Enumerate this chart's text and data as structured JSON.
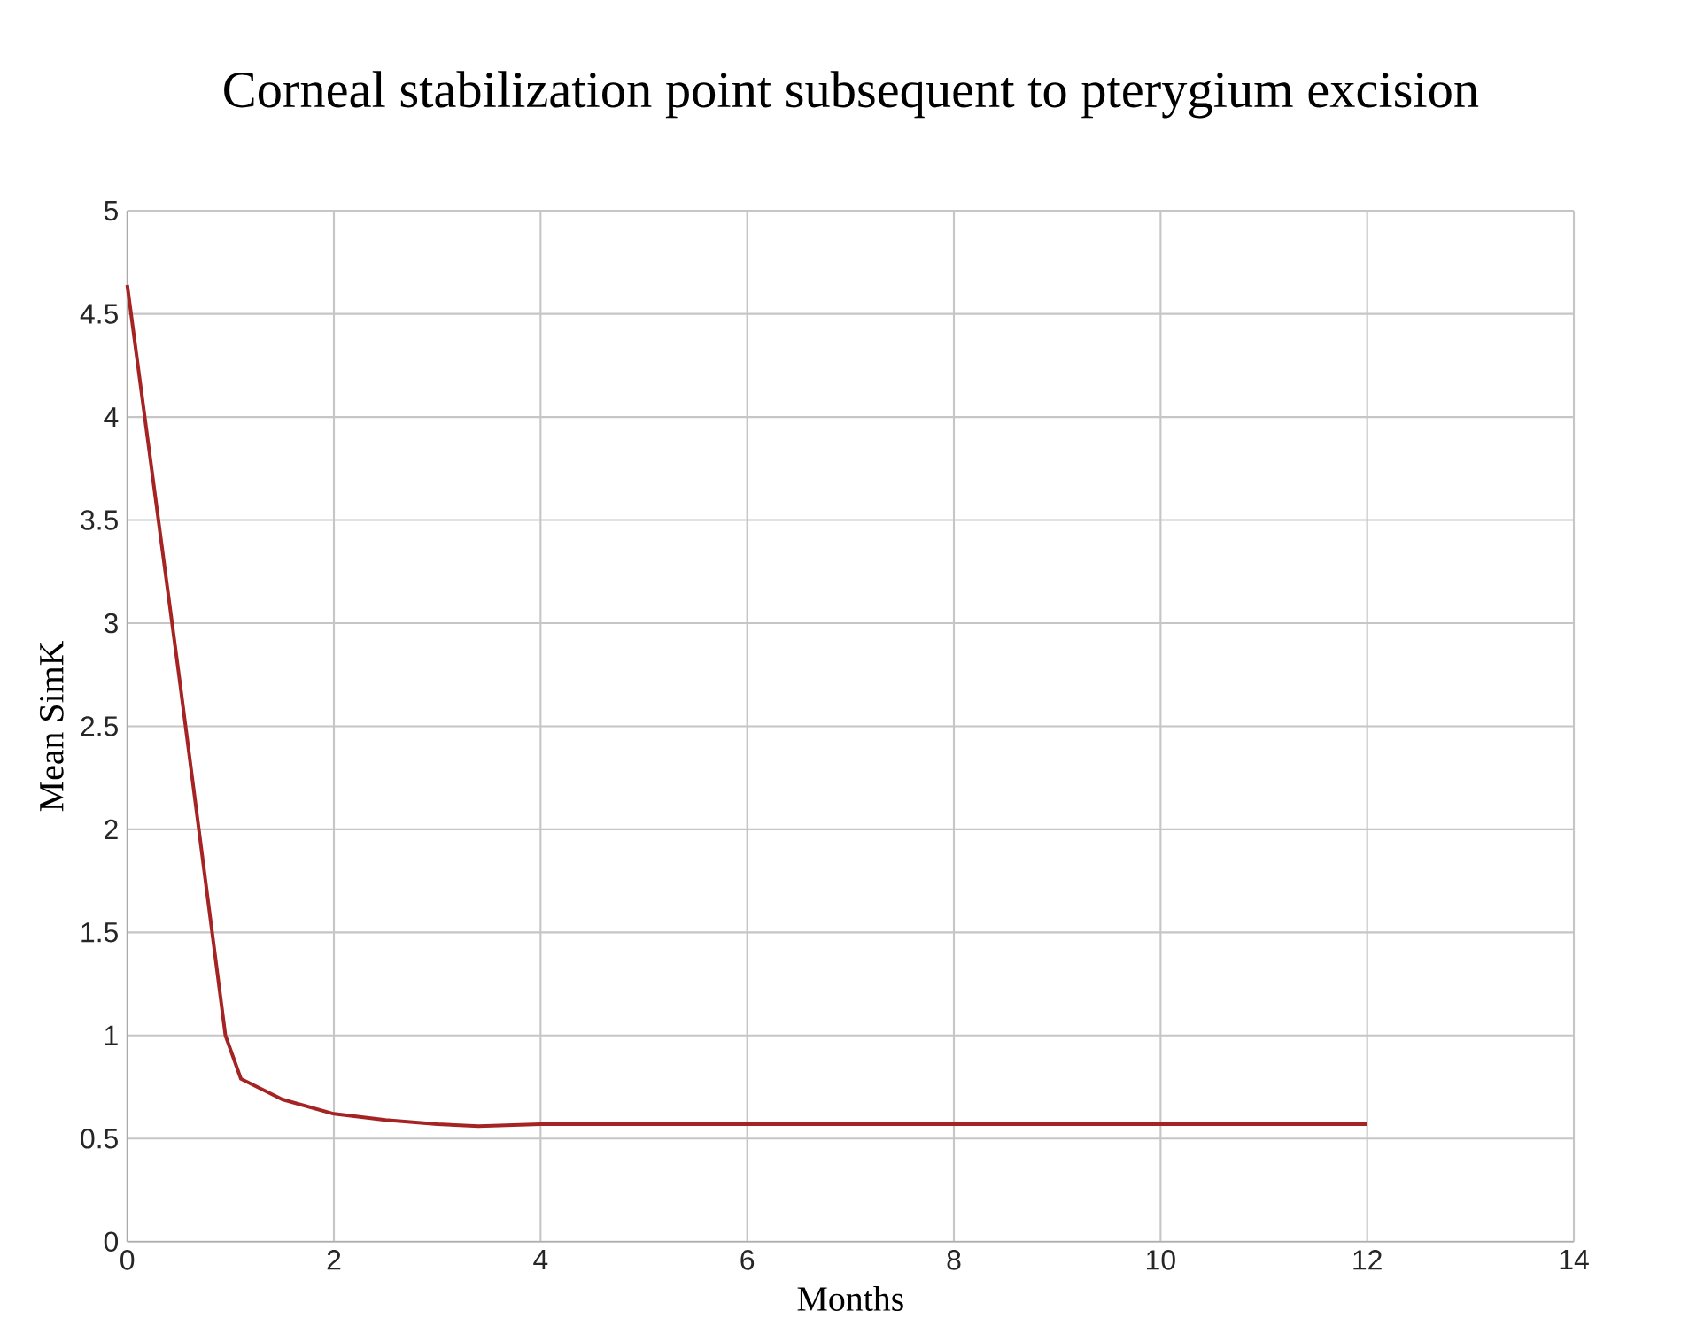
{
  "chart_data": {
    "type": "line",
    "title": "Corneal stabilization point subsequent to pterygium excision",
    "xlabel": "Months",
    "ylabel": "Mean SimK",
    "x": [
      0,
      0.5,
      0.95,
      1.1,
      1.5,
      2,
      2.5,
      3,
      3.4,
      4,
      6,
      8,
      10,
      12
    ],
    "series": [
      {
        "color": "#a52323",
        "values": [
          4.64,
          2.75,
          1.0,
          0.79,
          0.69,
          0.62,
          0.59,
          0.57,
          0.56,
          0.57,
          0.57,
          0.57,
          0.57,
          0.57
        ]
      }
    ],
    "xlim": [
      0,
      14
    ],
    "ylim": [
      0,
      5
    ],
    "xticks": [
      0,
      2,
      4,
      6,
      8,
      10,
      12,
      14
    ],
    "yticks": [
      0,
      0.5,
      1,
      1.5,
      2,
      2.5,
      3,
      3.5,
      4,
      4.5,
      5
    ],
    "grid": true,
    "marker": "none",
    "line_style": "solid"
  }
}
